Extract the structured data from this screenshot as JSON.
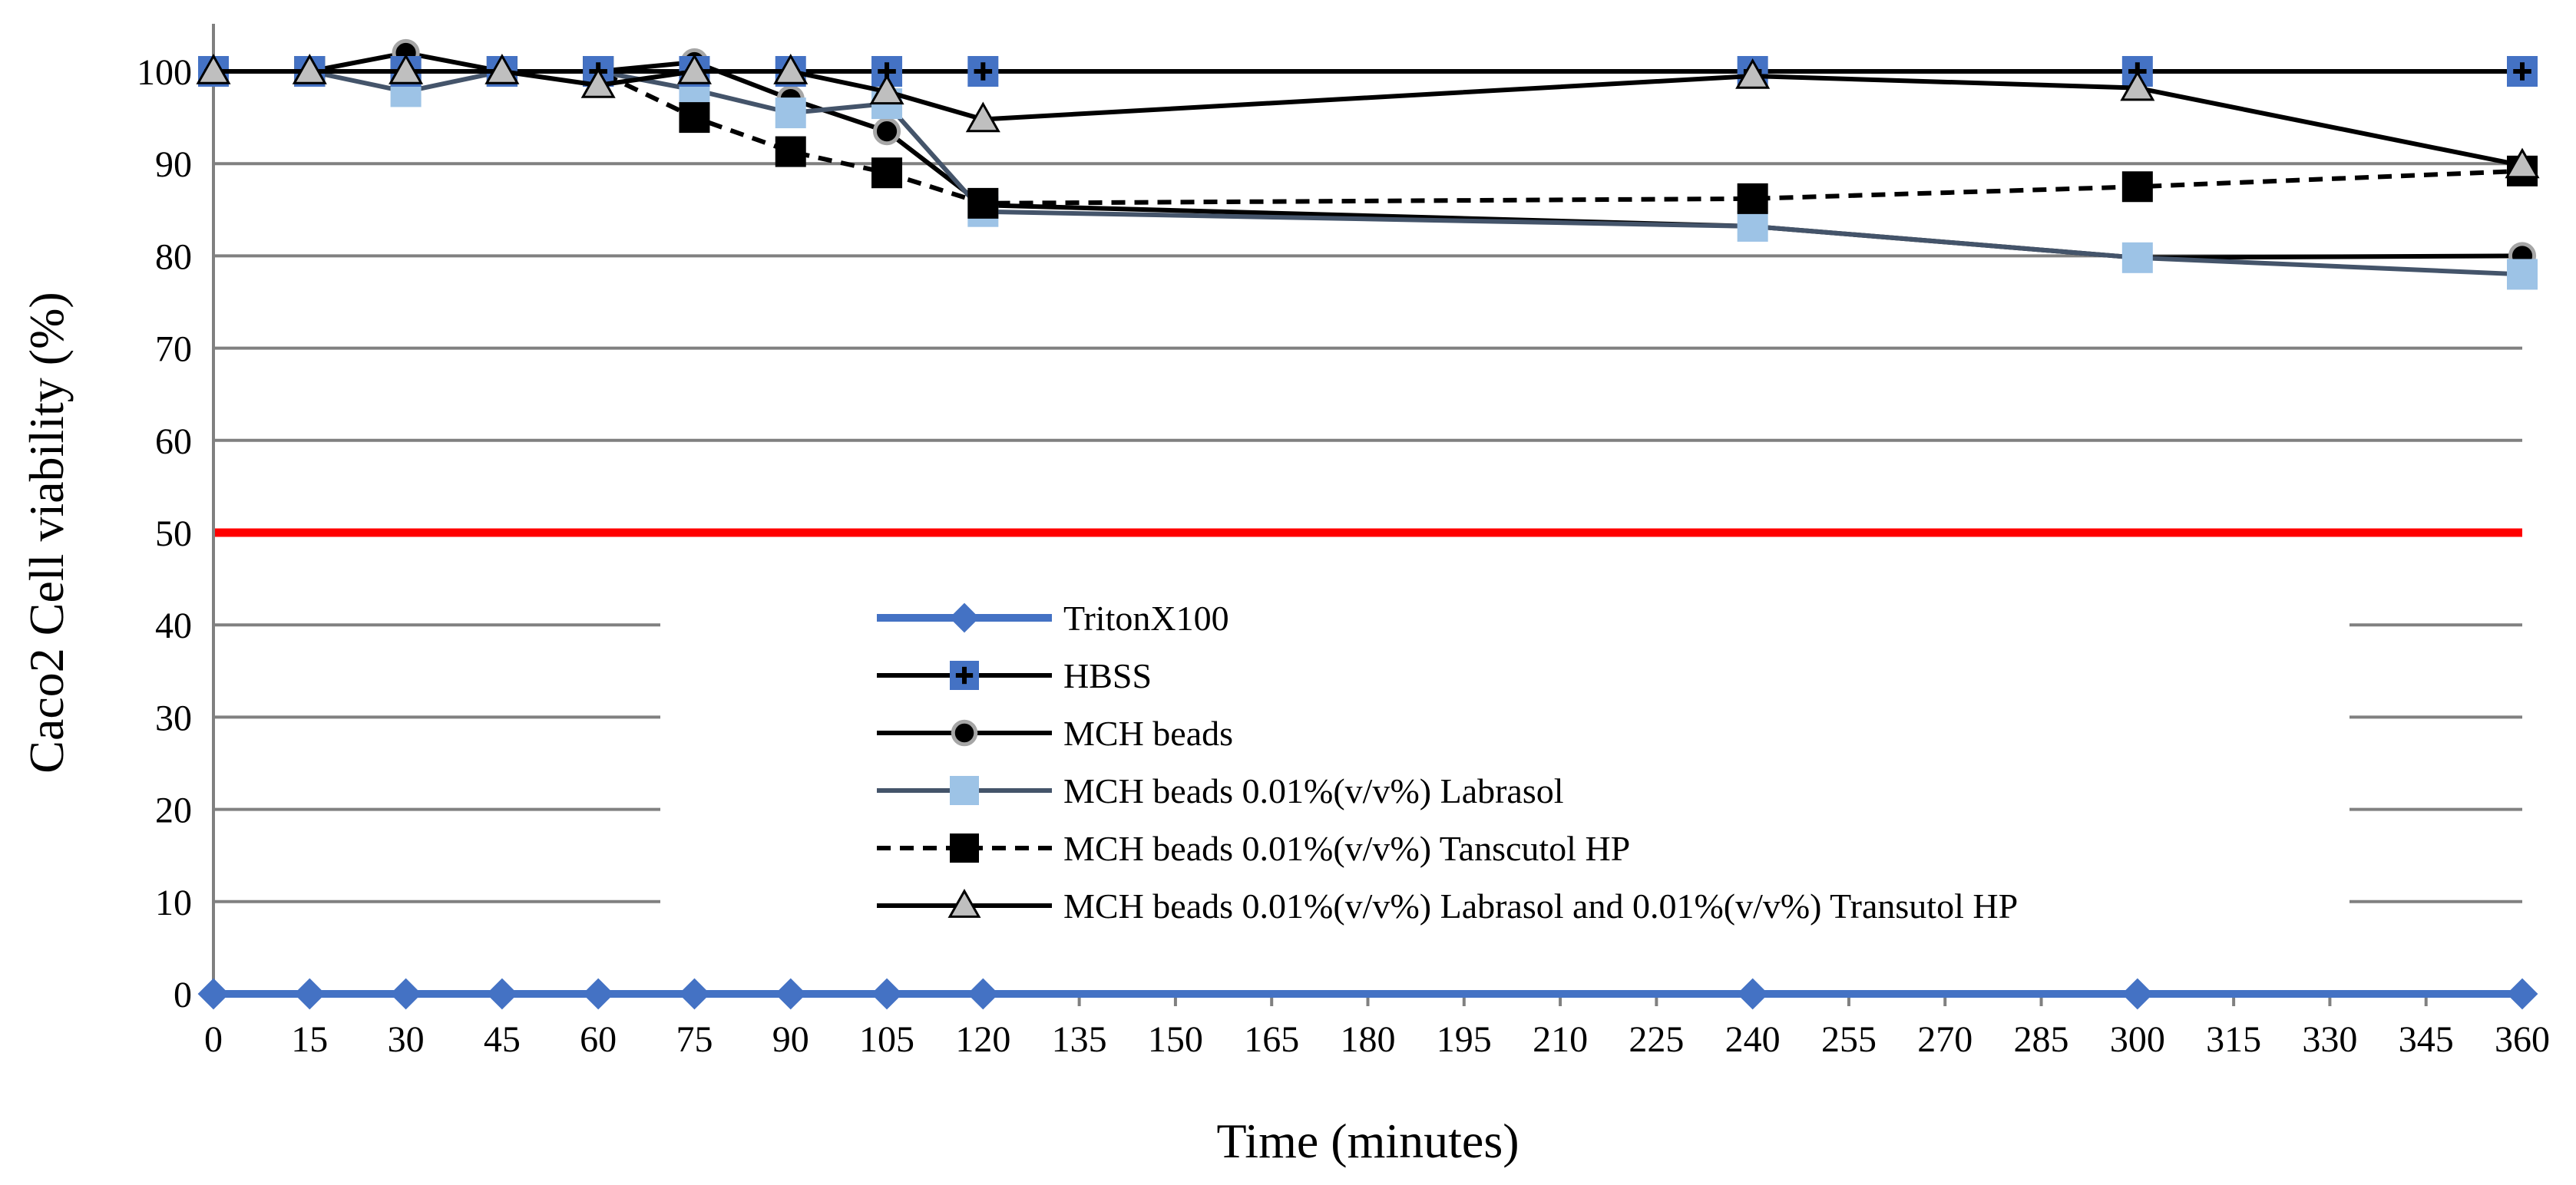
{
  "chart_data": {
    "type": "line",
    "title": "",
    "xlabel": "Time (minutes)",
    "ylabel": "Caco2 Cell viability (%)",
    "xlim": [
      0,
      360
    ],
    "ylim": [
      0,
      100
    ],
    "x_ticks": [
      0,
      15,
      30,
      45,
      60,
      75,
      90,
      105,
      120,
      135,
      150,
      165,
      180,
      195,
      210,
      225,
      240,
      255,
      270,
      285,
      300,
      315,
      330,
      345,
      360
    ],
    "y_ticks": [
      0,
      10,
      20,
      30,
      40,
      50,
      60,
      70,
      80,
      90,
      100
    ],
    "grid": "horizontal",
    "legend_position": "center",
    "x": [
      0,
      15,
      30,
      45,
      60,
      75,
      90,
      105,
      120,
      240,
      300,
      360
    ],
    "threshold": {
      "value": 50,
      "color": "#ff0000"
    },
    "series": [
      {
        "name": "TritonX100",
        "values": [
          0,
          0,
          0,
          0,
          0,
          0,
          0,
          0,
          0,
          0,
          0,
          0
        ],
        "line_color": "#4472c4",
        "line_style": "solid",
        "marker": "diamond",
        "marker_fill": "#4472c4",
        "marker_stroke": "#4472c4"
      },
      {
        "name": "HBSS",
        "values": [
          100,
          100,
          100,
          100,
          100,
          100,
          100,
          100,
          100,
          100,
          100,
          100
        ],
        "line_color": "#000000",
        "line_style": "solid",
        "marker": "square-plus",
        "marker_fill": "#4472c4",
        "marker_stroke": "#000000"
      },
      {
        "name": "MCH beads",
        "values": [
          100,
          100,
          102,
          100,
          100,
          101,
          97,
          93.5,
          85.5,
          83.2,
          79.8,
          80
        ],
        "line_color": "#000000",
        "line_style": "solid",
        "marker": "circle",
        "marker_fill": "#000000",
        "marker_stroke": "#a6a6a6"
      },
      {
        "name": "MCH beads 0.01%(v/v%) Labrasol",
        "values": [
          100,
          100,
          97.8,
          100,
          100,
          98,
          95.5,
          96.5,
          84.8,
          83.2,
          79.8,
          78
        ],
        "line_color": "#44546a",
        "line_style": "solid",
        "marker": "square",
        "marker_fill": "#9dc3e6",
        "marker_stroke": "#9dc3e6"
      },
      {
        "name": "MCH beads 0.01%(v/v%) Tanscutol HP",
        "values": [
          100,
          100,
          100,
          100,
          100,
          95,
          91.3,
          89,
          85.7,
          86.2,
          87.5,
          89.2
        ],
        "line_color": "#000000",
        "line_style": "dashed",
        "marker": "square",
        "marker_fill": "#000000",
        "marker_stroke": "#000000"
      },
      {
        "name": "MCH beads 0.01%(v/v%) Labrasol and 0.01%(v/v%) Transutol HP",
        "values": [
          100,
          100,
          100,
          100,
          98.5,
          100,
          100,
          97.8,
          94.8,
          99.5,
          98.2,
          89.8
        ],
        "line_color": "#000000",
        "line_style": "solid",
        "marker": "triangle",
        "marker_fill": "#bfbfbf",
        "marker_stroke": "#000000"
      }
    ]
  }
}
